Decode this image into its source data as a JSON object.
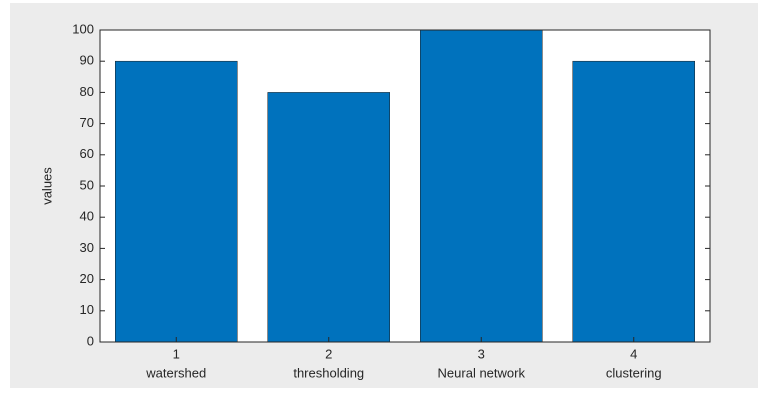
{
  "chart_data": {
    "type": "bar",
    "ylabel": "values",
    "categories": [
      "1",
      "2",
      "3",
      "4"
    ],
    "category_names": [
      "watershed",
      "thresholding",
      "Neural network",
      "clustering"
    ],
    "values": [
      90,
      80,
      100,
      90
    ],
    "color": "#0072bd",
    "ylim": [
      0,
      100
    ],
    "yticks": [
      0,
      10,
      20,
      30,
      40,
      50,
      60,
      70,
      80,
      90,
      100
    ],
    "grid": false
  }
}
